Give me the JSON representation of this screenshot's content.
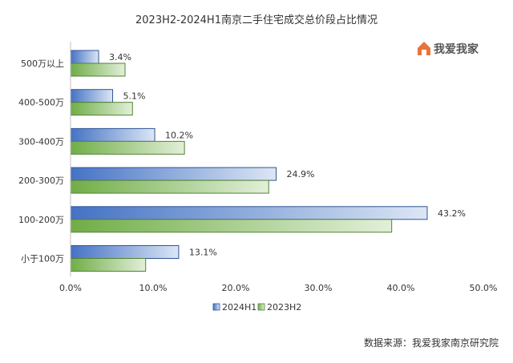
{
  "chart_data": {
    "type": "bar",
    "orientation": "horizontal",
    "title": "2023H2-2024H1南京二手住宅成交总价段占比情况",
    "categories": [
      "500万以上",
      "400-500万",
      "300-400万",
      "200-300万",
      "100-200万",
      "小于100万"
    ],
    "series": [
      {
        "name": "2024H1",
        "values": [
          3.4,
          5.1,
          10.2,
          24.9,
          43.2,
          13.1
        ],
        "color_start": "#4472C4",
        "color_end": "#DCE6F5",
        "border": "#2F5597"
      },
      {
        "name": "2023H2",
        "values": [
          6.6,
          7.5,
          13.8,
          24.0,
          38.9,
          9.1
        ],
        "color_start": "#70AD47",
        "color_end": "#E2EFD9",
        "border": "#548235"
      }
    ],
    "data_labels": [
      "3.4%",
      "5.1%",
      "10.2%",
      "24.9%",
      "43.2%",
      "13.1%"
    ],
    "xlim": [
      0,
      50
    ],
    "x_ticks": [
      "0.0%",
      "10.0%",
      "20.0%",
      "30.0%",
      "40.0%",
      "50.0%"
    ],
    "grid": false,
    "legend": "bottom"
  },
  "brand": {
    "name": "我爱我家",
    "icon": "house-logo-icon",
    "color": "#E8743B"
  },
  "source": "数据来源：我爱我家南京研究院"
}
